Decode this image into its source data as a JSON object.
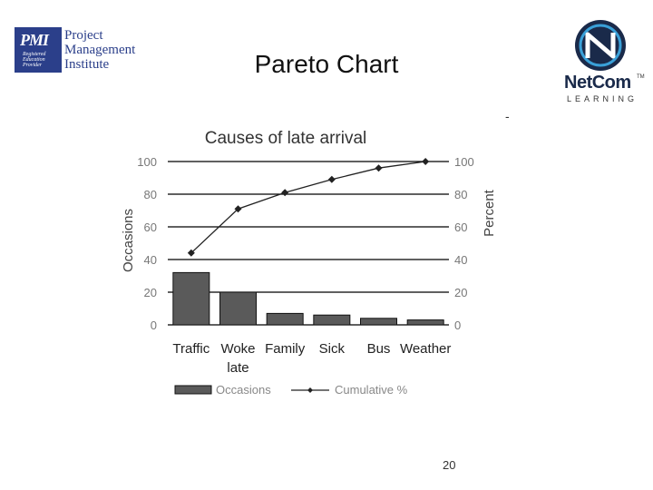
{
  "slide": {
    "title": "Pareto Chart",
    "page_number": "20",
    "corner_mark": "-"
  },
  "logos": {
    "pmi": {
      "mark": "PMI",
      "lines": [
        "Project",
        "Management",
        "Institute"
      ],
      "badge": [
        "Registered",
        "Education",
        "Provider"
      ],
      "color": "#2b3f8a"
    },
    "netcom": {
      "name": "NetCom",
      "tm": "TM",
      "tagline": "LEARNING",
      "colors": {
        "circle": "#1a2a4a",
        "swoosh": "#3aa0d8"
      }
    }
  },
  "chart_data": {
    "type": "bar",
    "title": "Causes of late arrival",
    "categories": [
      "Traffic",
      "Woke late",
      "Family",
      "Sick",
      "Bus",
      "Weather"
    ],
    "category_label_lines": [
      [
        "Traffic"
      ],
      [
        "Woke",
        "late"
      ],
      [
        "Family"
      ],
      [
        "Sick"
      ],
      [
        "Bus"
      ],
      [
        "Weather"
      ]
    ],
    "series": [
      {
        "name": "Occasions",
        "type": "bar",
        "axis": "left",
        "values": [
          32,
          20,
          7,
          6,
          4,
          3
        ],
        "color": "#5a5a5a"
      },
      {
        "name": "Cumulative %",
        "type": "line",
        "axis": "right",
        "values": [
          44,
          71,
          81,
          89,
          96,
          100
        ],
        "color": "#222222"
      }
    ],
    "ylabel": "Occasions",
    "y2label": "Percent",
    "ylim": [
      0,
      100
    ],
    "y2lim": [
      0,
      100
    ],
    "yticks": [
      0,
      20,
      40,
      60,
      80,
      100
    ],
    "y2ticks": [
      0,
      20,
      40,
      60,
      80,
      100
    ],
    "grid": true,
    "legend_position": "bottom"
  }
}
